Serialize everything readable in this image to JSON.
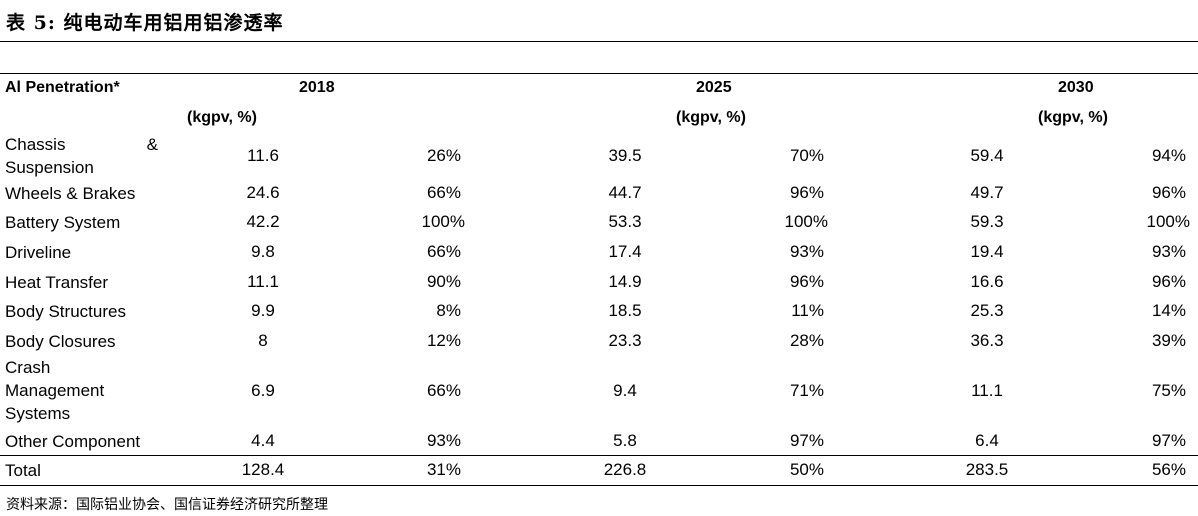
{
  "title": "表 5:  纯电动车用铝用铝渗透率",
  "header": {
    "first_col": "Al Penetration*",
    "years": [
      "2018",
      "2025",
      "2030"
    ],
    "unit": "(kgpv, %)"
  },
  "rows": [
    {
      "label": "Chassis & Suspension",
      "v2018": "11.6",
      "p2018": "26%",
      "v2025": "39.5",
      "p2025": "70%",
      "v2030": "59.4",
      "p2030": "94%"
    },
    {
      "label": "Wheels & Brakes",
      "v2018": "24.6",
      "p2018": "66%",
      "v2025": "44.7",
      "p2025": "96%",
      "v2030": "49.7",
      "p2030": "96%"
    },
    {
      "label": "Battery System",
      "v2018": "42.2",
      "p2018": "100%",
      "v2025": "53.3",
      "p2025": "100%",
      "v2030": "59.3",
      "p2030": "100%"
    },
    {
      "label": "Driveline",
      "v2018": "9.8",
      "p2018": "66%",
      "v2025": "17.4",
      "p2025": "93%",
      "v2030": "19.4",
      "p2030": "93%"
    },
    {
      "label": "Heat Transfer",
      "v2018": "11.1",
      "p2018": "90%",
      "v2025": "14.9",
      "p2025": "96%",
      "v2030": "16.6",
      "p2030": "96%"
    },
    {
      "label": "Body Structures",
      "v2018": "9.9",
      "p2018": "8%",
      "v2025": "18.5",
      "p2025": "11%",
      "v2030": "25.3",
      "p2030": "14%"
    },
    {
      "label": "Body Closures",
      "v2018": "8",
      "p2018": "12%",
      "v2025": "23.3",
      "p2025": "28%",
      "v2030": "36.3",
      "p2030": "39%"
    },
    {
      "label": "Crash Management Systems",
      "v2018": "6.9",
      "p2018": "66%",
      "v2025": "9.4",
      "p2025": "71%",
      "v2030": "11.1",
      "p2030": "75%"
    },
    {
      "label": "Other Component",
      "v2018": "4.4",
      "p2018": "93%",
      "v2025": "5.8",
      "p2025": "97%",
      "v2030": "6.4",
      "p2030": "97%"
    },
    {
      "label": "Total",
      "v2018": "128.4",
      "p2018": "31%",
      "v2025": "226.8",
      "p2025": "50%",
      "v2030": "283.5",
      "p2030": "56%"
    }
  ],
  "source": "资料来源：国际铝业协会、国信证券经济研究所整理"
}
